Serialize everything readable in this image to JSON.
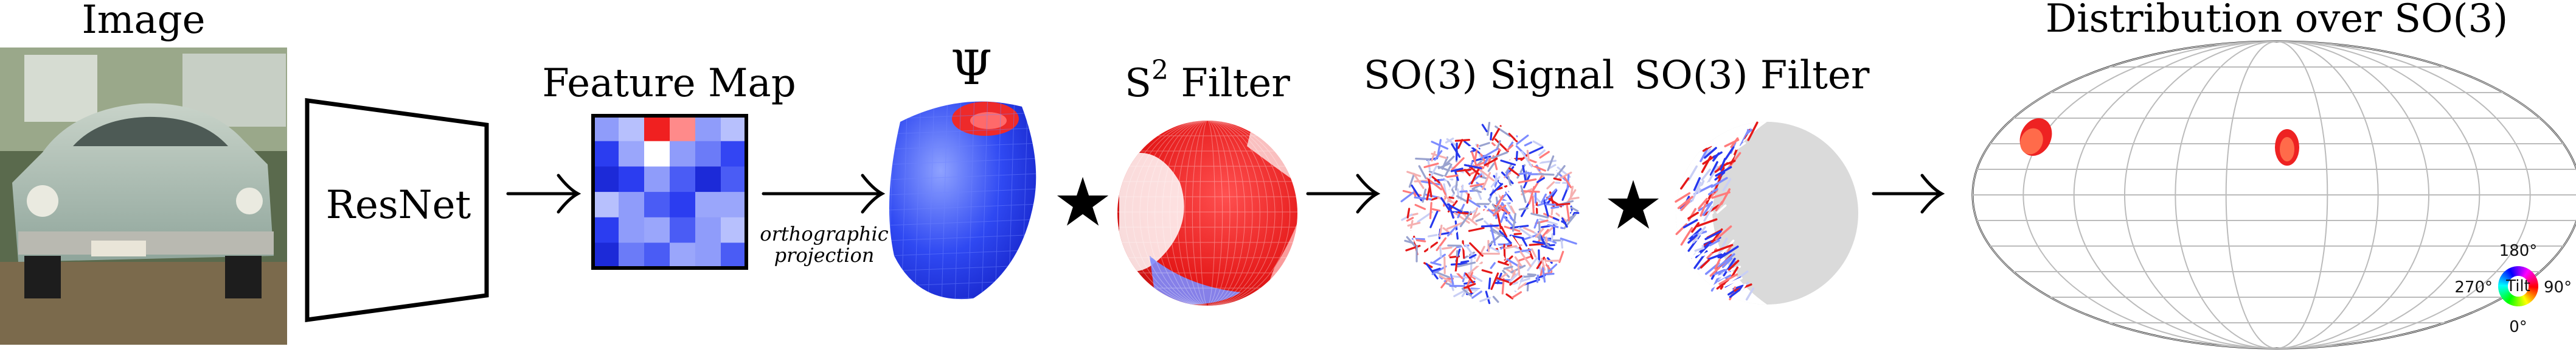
{
  "labels": {
    "image": "Image",
    "feature_map": "Feature Map",
    "psi": "Ψ",
    "s2_filter": "S",
    "s2_sup": "2",
    "s2_filter_rest": " Filter",
    "so3_signal": "SO(3) Signal",
    "so3_filter": "SO(3) Filter",
    "distribution": "Distribution over SO(3)",
    "resnet": "ResNet",
    "proj_line1": "orthographic",
    "proj_line2": "projection",
    "star": "★"
  },
  "legend": {
    "top": "180°",
    "bottom": "0°",
    "left": "270°",
    "right": "90°",
    "center": "Tilt"
  },
  "colors": {
    "blue": "#1f3df5",
    "red": "#f01515",
    "grey": "#d9d9d9"
  },
  "icons": [
    "car-photo",
    "trapezoid-network-icon",
    "arrow-right-icon",
    "star-convolution-icon"
  ]
}
